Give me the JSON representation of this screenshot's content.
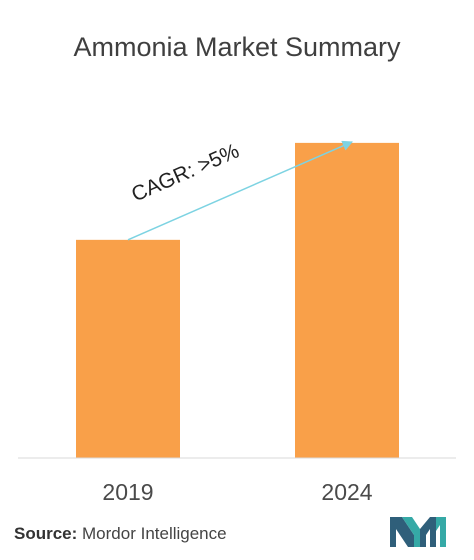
{
  "chart_data": {
    "type": "bar",
    "title": "Ammonia Market Summary",
    "categories": [
      "2019",
      "2024"
    ],
    "values": [
      54,
      78
    ],
    "ylim": [
      0,
      100
    ],
    "xlabel": "",
    "ylabel": "",
    "grid": false,
    "annotation": "CAGR: >5%"
  },
  "colors": {
    "bar": "#f9a049",
    "arrow": "#7dd3e2",
    "logo_dark": "#2f5f7a",
    "logo_teal": "#35a9a6"
  },
  "footer": {
    "source_label": "Source:",
    "source_name": " Mordor Intelligence"
  },
  "logo_icon": "mordor-intelligence-logo-icon"
}
